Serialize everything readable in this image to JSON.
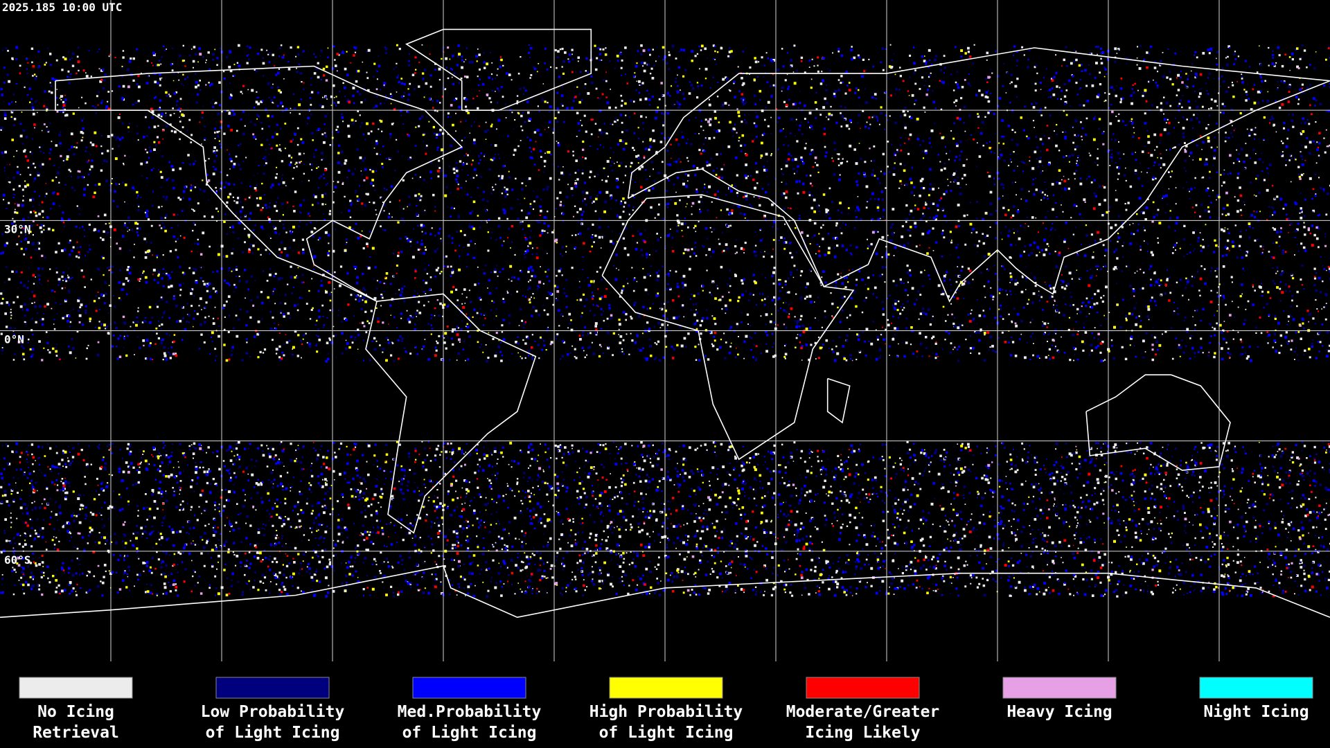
{
  "header": {
    "title": "2025.185 10:00 UTC"
  },
  "latitude_labels": [
    "30°N",
    "0°N",
    "60°S"
  ],
  "legend": [
    {
      "label": [
        "No Icing",
        "Retrieval"
      ],
      "color": "#ececec"
    },
    {
      "label": [
        "Low Probability",
        "of Light Icing"
      ],
      "color": "#00007f"
    },
    {
      "label": [
        "Med.Probability",
        "of Light Icing"
      ],
      "color": "#0000ff"
    },
    {
      "label": [
        "High Probability",
        "of Light Icing"
      ],
      "color": "#ffff00"
    },
    {
      "label": [
        "Moderate/Greater",
        "Icing Likely"
      ],
      "color": "#ff0000"
    },
    {
      "label": [
        "Heavy Icing"
      ],
      "color": "#e6a0e6"
    },
    {
      "label": [
        "Night Icing"
      ],
      "color": "#00ffff"
    }
  ]
}
